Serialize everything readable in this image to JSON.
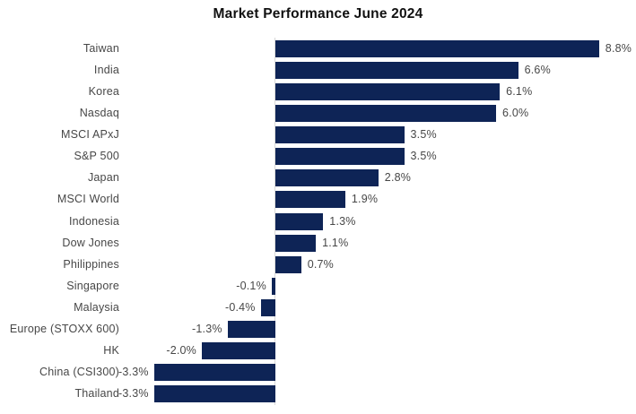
{
  "title": "Market Performance June 2024",
  "chart_data": {
    "type": "bar",
    "orientation": "horizontal",
    "title": "Market Performance June 2024",
    "categories": [
      "Taiwan",
      "India",
      "Korea",
      "Nasdaq",
      "MSCI APxJ",
      "S&P 500",
      "Japan",
      "MSCI World",
      "Indonesia",
      "Dow Jones",
      "Philippines",
      "Singapore",
      "Malaysia",
      "Europe (STOXX 600)",
      "HK",
      "China (CSI300)",
      "Thailand"
    ],
    "values": [
      8.8,
      6.6,
      6.1,
      6.0,
      3.5,
      3.5,
      2.8,
      1.9,
      1.3,
      1.1,
      0.7,
      -0.1,
      -0.4,
      -1.3,
      -2.0,
      -3.3,
      -3.3
    ],
    "value_labels": [
      "8.8%",
      "6.6%",
      "6.1%",
      "6.0%",
      "3.5%",
      "3.5%",
      "2.8%",
      "1.9%",
      "1.3%",
      "1.1%",
      "0.7%",
      "-0.1%",
      "-0.4%",
      "-1.3%",
      "-2.0%",
      "-3.3%",
      "-3.3%"
    ],
    "xlabel": "",
    "ylabel": "",
    "xlim": [
      -3.5,
      9.8
    ],
    "grid": false,
    "legend": false,
    "data_label_position": "outside-end",
    "bar_color": "#0e2456",
    "axis_line_color": "#d9d9d9",
    "label_color": "#474747",
    "title_color": "#111111",
    "background_color": "#ffffff"
  }
}
